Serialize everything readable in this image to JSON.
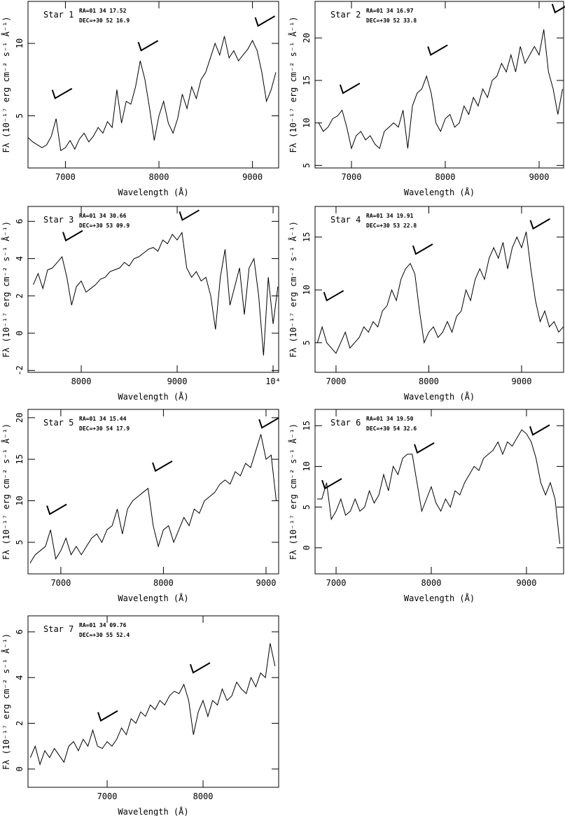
{
  "chart_data": [
    {
      "type": "line",
      "title": "Star 1",
      "ra": "RA=01 34 17.52",
      "dec": "DEC=+30 52 16.9",
      "xlabel": "Wavelength (Å)",
      "ylabel": "Fλ (10⁻¹⁷ erg cm⁻² s⁻¹ Å⁻¹)",
      "color": "#000000",
      "xlim": [
        6600,
        9280
      ],
      "xticks": [
        7000,
        8000,
        9000
      ],
      "ylim": [
        1.4,
        12.9
      ],
      "yticks": [
        5,
        10
      ],
      "x": [
        6600,
        6650,
        6700,
        6750,
        6800,
        6850,
        6900,
        6950,
        7000,
        7050,
        7100,
        7150,
        7200,
        7250,
        7300,
        7350,
        7400,
        7450,
        7500,
        7550,
        7600,
        7650,
        7700,
        7750,
        7800,
        7850,
        7900,
        7950,
        8000,
        8050,
        8100,
        8150,
        8200,
        8250,
        8300,
        8350,
        8400,
        8450,
        8500,
        8550,
        8600,
        8650,
        8700,
        8750,
        8800,
        8850,
        8900,
        8950,
        9000,
        9050,
        9100,
        9150,
        9200,
        9250
      ],
      "values": [
        3.5,
        3.2,
        3.0,
        2.8,
        3.0,
        3.6,
        4.8,
        2.6,
        2.8,
        3.3,
        2.7,
        3.4,
        3.8,
        3.2,
        3.6,
        4.2,
        3.8,
        4.6,
        4.2,
        6.8,
        4.5,
        6.0,
        5.8,
        7.0,
        8.8,
        7.5,
        5.5,
        3.3,
        5.0,
        6.0,
        4.5,
        3.8,
        4.8,
        6.5,
        5.5,
        7.0,
        6.2,
        7.5,
        8.0,
        9.0,
        10.0,
        9.2,
        10.5,
        9.0,
        9.5,
        8.8,
        9.2,
        9.6,
        10.2,
        9.5,
        8.0,
        6.0,
        6.8,
        8.0
      ],
      "markers": [
        {
          "x": 6860,
          "y": 6.5
        },
        {
          "x": 7780,
          "y": 9.8
        },
        {
          "x": 9030,
          "y": 11.5
        }
      ]
    },
    {
      "type": "line",
      "title": "Star 2",
      "ra": "RA=01 34 16.97",
      "dec": "DEC=+30 52 33.8",
      "xlabel": "Wavelength (Å)",
      "ylabel": "Fλ (10⁻¹⁷ erg cm⁻² s⁻¹ Å⁻¹)",
      "color": "#000000",
      "xlim": [
        6612,
        9261
      ],
      "xticks": [
        7000,
        8000,
        9000
      ],
      "ylim": [
        4.7,
        24.3
      ],
      "yticks": [
        5,
        10,
        15,
        20
      ],
      "x": [
        6650,
        6700,
        6750,
        6800,
        6850,
        6900,
        6950,
        7000,
        7050,
        7100,
        7150,
        7200,
        7250,
        7300,
        7350,
        7400,
        7450,
        7500,
        7550,
        7600,
        7650,
        7700,
        7750,
        7800,
        7850,
        7900,
        7950,
        8000,
        8050,
        8100,
        8150,
        8200,
        8250,
        8300,
        8350,
        8400,
        8450,
        8500,
        8550,
        8600,
        8650,
        8700,
        8750,
        8800,
        8850,
        8900,
        8950,
        9000,
        9050,
        9100,
        9150,
        9200,
        9250
      ],
      "values": [
        10,
        9,
        9.5,
        10.5,
        10.8,
        11.5,
        9.5,
        7,
        8.5,
        9,
        8,
        8.5,
        7.5,
        7,
        9,
        9.5,
        10,
        9.5,
        11.5,
        7,
        12,
        13.5,
        14,
        15.5,
        13.5,
        10,
        9,
        10.5,
        11,
        9.5,
        10,
        12,
        11,
        13,
        12,
        14,
        13,
        15,
        15.5,
        17,
        16,
        18,
        16,
        19,
        17,
        18,
        19,
        18,
        21,
        16,
        14,
        11,
        14
      ],
      "markers": [
        {
          "x": 6880,
          "y": 14
        },
        {
          "x": 7815,
          "y": 18.5
        },
        {
          "x": 9140,
          "y": 23.5
        }
      ]
    },
    {
      "type": "line",
      "title": "Star 3",
      "ra": "RA=01 34 30.66",
      "dec": "DEC=+30 53 09.9",
      "xlabel": "Wavelength (Å)",
      "ylabel": "Fλ (10⁻¹⁷ erg cm⁻² s⁻¹ Å⁻¹)",
      "color": "#000000",
      "xlim": [
        7445,
        10058
      ],
      "xticks": [
        8000,
        9000,
        {
          "value": 10000,
          "label": "10⁴"
        }
      ],
      "ylim": [
        -2.1,
        6.8
      ],
      "yticks": [
        -2,
        0,
        2,
        4,
        6
      ],
      "x": [
        7500,
        7550,
        7600,
        7650,
        7700,
        7750,
        7800,
        7850,
        7900,
        7950,
        8000,
        8050,
        8100,
        8150,
        8200,
        8250,
        8300,
        8350,
        8400,
        8450,
        8500,
        8550,
        8600,
        8650,
        8700,
        8750,
        8800,
        8850,
        8900,
        8950,
        9000,
        9050,
        9100,
        9150,
        9200,
        9250,
        9300,
        9350,
        9400,
        9450,
        9500,
        9550,
        9600,
        9650,
        9700,
        9750,
        9800,
        9850,
        9900,
        9950,
        10000,
        10050
      ],
      "values": [
        2.6,
        3.2,
        2.4,
        3.4,
        3.5,
        3.8,
        4.1,
        3.0,
        1.5,
        2.5,
        2.8,
        2.2,
        2.4,
        2.6,
        2.9,
        3.0,
        3.3,
        3.4,
        3.5,
        3.8,
        3.6,
        4.0,
        4.1,
        4.3,
        4.5,
        4.6,
        4.4,
        5.0,
        4.8,
        5.3,
        5.0,
        5.4,
        3.5,
        3.0,
        3.3,
        2.8,
        3.0,
        2.0,
        0.2,
        3.0,
        4.5,
        1.5,
        2.5,
        3.5,
        1.0,
        3.5,
        4.0,
        2.0,
        -1.2,
        3.0,
        0.5,
        2.5
      ],
      "markers": [
        {
          "x": 7810,
          "y": 5.2
        },
        {
          "x": 9025,
          "y": 6.3
        }
      ]
    },
    {
      "type": "line",
      "title": "Star 4",
      "ra": "RA=01 34 19.91",
      "dec": "DEC=+30 53 22.8",
      "xlabel": "Wavelength (Å)",
      "ylabel": "Fλ (10⁻¹⁷ erg cm⁻² s⁻¹ Å⁻¹)",
      "color": "#000000",
      "xlim": [
        6774,
        9453
      ],
      "xticks": [
        7000,
        8000,
        9000
      ],
      "ylim": [
        2.2,
        17.9
      ],
      "yticks": [
        5,
        10,
        15
      ],
      "x": [
        6800,
        6850,
        6900,
        6950,
        7000,
        7050,
        7100,
        7150,
        7200,
        7250,
        7300,
        7350,
        7400,
        7450,
        7500,
        7550,
        7600,
        7650,
        7700,
        7750,
        7800,
        7850,
        7900,
        7950,
        8000,
        8050,
        8100,
        8150,
        8200,
        8250,
        8300,
        8350,
        8400,
        8450,
        8500,
        8550,
        8600,
        8650,
        8700,
        8750,
        8800,
        8850,
        8900,
        8950,
        9000,
        9050,
        9100,
        9150,
        9200,
        9250,
        9300,
        9350,
        9400,
        9450
      ],
      "values": [
        5,
        6.5,
        5,
        4.5,
        4,
        5,
        6,
        4.5,
        5,
        5.5,
        6.5,
        6,
        7,
        6.5,
        8,
        8.5,
        10,
        9,
        11,
        12,
        12.5,
        11.5,
        8,
        5,
        6,
        6.5,
        5.5,
        6,
        7,
        6,
        7.5,
        8,
        10,
        9,
        11,
        12,
        11,
        13,
        14,
        13,
        14.5,
        12,
        14,
        15,
        14,
        15.5,
        12,
        9,
        7,
        8,
        6.5,
        7,
        6,
        6.5
      ],
      "markers": [
        {
          "x": 6870,
          "y": 9.4
        },
        {
          "x": 7830,
          "y": 13.8
        },
        {
          "x": 9095,
          "y": 16.2
        }
      ]
    },
    {
      "type": "line",
      "title": "Star 5",
      "ra": "RA=01 34 15.44",
      "dec": "DEC=+30 54 17.9",
      "xlabel": "Wavelength (Å)",
      "ylabel": "Fλ (10⁻¹⁷ erg cm⁻² s⁻¹ Å⁻¹)",
      "color": "#000000",
      "xlim": [
        6680,
        9123
      ],
      "xticks": [
        7000,
        8000,
        9000
      ],
      "ylim": [
        1.2,
        21
      ],
      "yticks": [
        5,
        10,
        15,
        20
      ],
      "x": [
        6700,
        6750,
        6800,
        6850,
        6900,
        6950,
        7000,
        7050,
        7100,
        7150,
        7200,
        7250,
        7300,
        7350,
        7400,
        7450,
        7500,
        7550,
        7600,
        7650,
        7700,
        7750,
        7800,
        7850,
        7900,
        7950,
        8000,
        8050,
        8100,
        8150,
        8200,
        8250,
        8300,
        8350,
        8400,
        8450,
        8500,
        8550,
        8600,
        8650,
        8700,
        8750,
        8800,
        8850,
        8900,
        8950,
        9000,
        9050,
        9100
      ],
      "values": [
        2.5,
        3.5,
        4,
        4.5,
        6.5,
        3,
        4,
        5.5,
        3.5,
        4.5,
        3.5,
        4.5,
        5.5,
        6,
        5,
        6.5,
        7,
        9,
        6,
        9,
        10,
        10.5,
        11,
        11.5,
        7,
        4.5,
        6.5,
        7,
        5,
        6.5,
        8,
        7,
        9,
        8.5,
        10,
        10.5,
        11,
        12,
        12.5,
        12,
        13.5,
        13,
        14.5,
        14,
        16,
        18,
        15,
        15.5,
        10
      ],
      "markers": [
        {
          "x": 6865,
          "y": 8.9
        },
        {
          "x": 7895,
          "y": 14.1
        },
        {
          "x": 8933,
          "y": 19.3
        }
      ]
    },
    {
      "type": "line",
      "title": "Star 6",
      "ra": "RA=01 34 19.50",
      "dec": "DEC=+30 54 32.6",
      "xlabel": "Wavelength (Å)",
      "ylabel": "Fλ (10⁻¹⁷ erg cm⁻² s⁻¹ Å⁻¹)",
      "color": "#000000",
      "xlim": [
        6779,
        9390
      ],
      "xticks": [
        7000,
        8000,
        9000
      ],
      "ylim": [
        -3.2,
        17
      ],
      "yticks": [
        0,
        5,
        10,
        15
      ],
      "x": [
        6800,
        6850,
        6900,
        6950,
        7000,
        7050,
        7100,
        7150,
        7200,
        7250,
        7300,
        7350,
        7400,
        7450,
        7500,
        7550,
        7600,
        7650,
        7700,
        7750,
        7800,
        7850,
        7900,
        7950,
        8000,
        8050,
        8100,
        8150,
        8200,
        8250,
        8300,
        8350,
        8400,
        8450,
        8500,
        8550,
        8600,
        8650,
        8700,
        8750,
        8800,
        8850,
        8900,
        8950,
        9000,
        9050,
        9100,
        9150,
        9200,
        9250,
        9300,
        9350
      ],
      "values": [
        6,
        6,
        8,
        3.5,
        4.5,
        6,
        4,
        4.5,
        6,
        4.5,
        5,
        7,
        5.5,
        6.5,
        9,
        7,
        10,
        9,
        11,
        11.5,
        11.5,
        8,
        4.5,
        6,
        7.5,
        5.5,
        4.5,
        6,
        5,
        7,
        6.5,
        8,
        9,
        10,
        9.5,
        11,
        11.5,
        12,
        13,
        11.5,
        13,
        12.5,
        13.5,
        14.5,
        14,
        13,
        11,
        8,
        6.5,
        8,
        6,
        0.5
      ],
      "markers": [
        {
          "x": 6853,
          "y": 7.8
        },
        {
          "x": 7824,
          "y": 12.2
        },
        {
          "x": 9037,
          "y": 14.4
        }
      ]
    },
    {
      "type": "line",
      "title": "Star 7",
      "ra": "RA=01 34 09.76",
      "dec": "DEC=+30 55 52.4",
      "xlabel": "Wavelength (Å)",
      "ylabel": "Fλ (10⁻¹⁷ erg cm⁻² s⁻¹ Å⁻¹)",
      "color": "#000000",
      "xlim": [
        6175,
        8788
      ],
      "xticks": [
        7000,
        8000
      ],
      "ylim": [
        -0.8,
        6.7
      ],
      "yticks": [
        0,
        2,
        4,
        6
      ],
      "x": [
        6200,
        6250,
        6300,
        6350,
        6400,
        6450,
        6500,
        6550,
        6600,
        6650,
        6700,
        6750,
        6800,
        6850,
        6900,
        6950,
        7000,
        7050,
        7100,
        7150,
        7200,
        7250,
        7300,
        7350,
        7400,
        7450,
        7500,
        7550,
        7600,
        7650,
        7700,
        7750,
        7800,
        7850,
        7900,
        7950,
        8000,
        8050,
        8100,
        8150,
        8200,
        8250,
        8300,
        8350,
        8400,
        8450,
        8500,
        8550,
        8600,
        8650,
        8700,
        8750
      ],
      "values": [
        0.5,
        1.0,
        0.2,
        0.8,
        0.5,
        0.9,
        0.6,
        0.3,
        1.0,
        1.2,
        0.8,
        1.3,
        1.0,
        1.7,
        1.0,
        0.9,
        1.2,
        1.0,
        1.3,
        1.8,
        1.5,
        2.2,
        2.0,
        2.5,
        2.3,
        2.8,
        2.6,
        3.0,
        2.8,
        3.2,
        3.4,
        3.3,
        3.7,
        3.0,
        1.5,
        2.5,
        3.0,
        2.3,
        3.0,
        2.8,
        3.5,
        3.0,
        3.2,
        3.8,
        3.5,
        3.3,
        4.0,
        3.6,
        4.2,
        4.0,
        5.5,
        4.5
      ],
      "markers": [
        {
          "x": 6905,
          "y": 2.3
        },
        {
          "x": 7868,
          "y": 4.4
        }
      ]
    }
  ]
}
